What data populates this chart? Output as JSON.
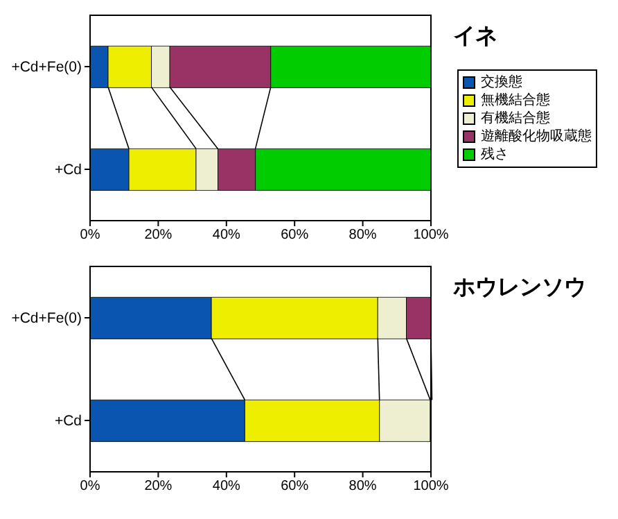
{
  "chart_data": [
    {
      "type": "bar",
      "title": "イネ",
      "orientation": "horizontal",
      "stacked": true,
      "categories": [
        "+Cd+Fe(0)",
        "+Cd"
      ],
      "xlim": [
        0,
        100
      ],
      "xticks": [
        {
          "value": 0,
          "label": "0%"
        },
        {
          "value": 20,
          "label": "20%"
        },
        {
          "value": 40,
          "label": "40%"
        },
        {
          "value": 60,
          "label": "60%"
        },
        {
          "value": 80,
          "label": "80%"
        },
        {
          "value": 100,
          "label": "100%"
        }
      ],
      "legend": "right",
      "grid": false,
      "series": [
        {
          "name": "交換態",
          "color": "#0a55b0",
          "values": [
            5.3,
            11.4
          ]
        },
        {
          "name": "無機結合態",
          "color": "#eeee00",
          "values": [
            12.7,
            19.7
          ]
        },
        {
          "name": "有機結合態",
          "color": "#eeeed0",
          "values": [
            5.4,
            6.4
          ]
        },
        {
          "name": "遊離酸化物吸蔵態",
          "color": "#993366",
          "values": [
            29.6,
            11.0
          ]
        },
        {
          "name": "残さ",
          "color": "#00cc00",
          "values": [
            47.0,
            51.5
          ]
        }
      ]
    },
    {
      "type": "bar",
      "title": "ホウレンソウ",
      "orientation": "horizontal",
      "stacked": true,
      "categories": [
        "+Cd+Fe(0)",
        "+Cd"
      ],
      "xlim": [
        0,
        100
      ],
      "xticks": [
        {
          "value": 0,
          "label": "0%"
        },
        {
          "value": 20,
          "label": "20%"
        },
        {
          "value": 40,
          "label": "40%"
        },
        {
          "value": 60,
          "label": "60%"
        },
        {
          "value": 80,
          "label": "80%"
        },
        {
          "value": 100,
          "label": "100%"
        }
      ],
      "grid": false,
      "series": [
        {
          "color": "#0a55b0",
          "values": [
            35.6,
            45.4
          ]
        },
        {
          "color": "#eeee00",
          "values": [
            48.8,
            39.5
          ]
        },
        {
          "color": "#eeeed0",
          "values": [
            8.4,
            14.9
          ]
        },
        {
          "color": "#993366",
          "values": [
            7.2,
            0.5
          ]
        }
      ]
    }
  ]
}
